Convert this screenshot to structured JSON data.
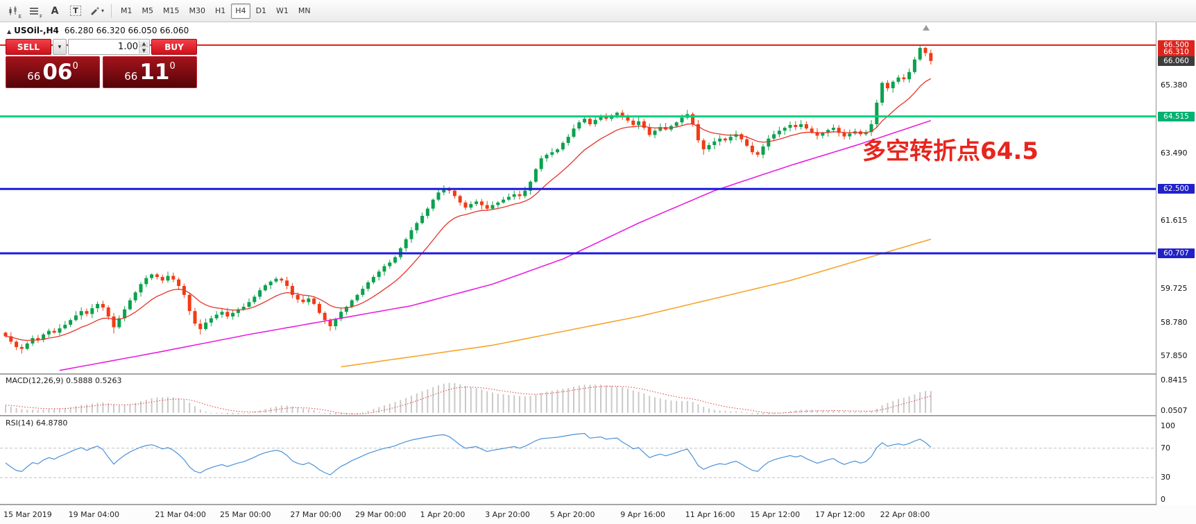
{
  "toolbar": {
    "tools": [
      {
        "name": "chart-window-icon",
        "glyph": "candles",
        "sub": "E"
      },
      {
        "name": "data-window-icon",
        "glyph": "list",
        "sub": "F"
      },
      {
        "name": "label-tool-icon",
        "glyph": "letter",
        "label": "A"
      },
      {
        "name": "text-tool-icon",
        "glyph": "boxed",
        "label": "T"
      },
      {
        "name": "draw-tool-icon",
        "glyph": "pen",
        "dropdown": true
      }
    ],
    "timeframes": [
      "M1",
      "M5",
      "M15",
      "M30",
      "H1",
      "H4",
      "D1",
      "W1",
      "MN"
    ],
    "active_timeframe": "H4"
  },
  "symbol_header": {
    "marker": "▲",
    "symbol": "USOil-,H4",
    "ohlc": "66.280 66.320 66.050 66.060"
  },
  "trade_panel": {
    "sell_label": "SELL",
    "buy_label": "BUY",
    "volume": "1.00",
    "bid": {
      "whole": "66",
      "pips": "06",
      "frac": "0"
    },
    "ask": {
      "whole": "66",
      "pips": "11",
      "frac": "0"
    }
  },
  "chart_data": {
    "type": "candlestick",
    "symbol": "USOil-",
    "timeframe": "H4",
    "current_ohlc": {
      "open": 66.28,
      "high": 66.32,
      "low": 66.05,
      "close": 66.06
    },
    "ylim": [
      57.6,
      66.75
    ],
    "style": {
      "up_color": "#0da14e",
      "down_color": "#f23b14",
      "macd_hist": "#c9c9c9",
      "macd_signal": "#e03636",
      "rsi_line": "#4a90d9"
    },
    "candles": {
      "first_open": 58.5,
      "closes": [
        58.4,
        58.25,
        58.1,
        58.05,
        58.2,
        58.35,
        58.3,
        58.45,
        58.55,
        58.5,
        58.62,
        58.72,
        58.85,
        58.98,
        59.1,
        59.02,
        59.18,
        59.3,
        59.2,
        58.95,
        58.65,
        58.9,
        59.15,
        59.4,
        59.62,
        59.85,
        60.02,
        60.12,
        60.05,
        59.95,
        60.08,
        59.98,
        59.8,
        59.55,
        59.1,
        58.75,
        58.6,
        58.78,
        58.9,
        59.0,
        59.08,
        58.95,
        59.05,
        59.15,
        59.22,
        59.35,
        59.5,
        59.68,
        59.82,
        59.92,
        60.0,
        59.95,
        59.8,
        59.55,
        59.42,
        59.35,
        59.45,
        59.3,
        59.05,
        58.85,
        58.68,
        58.88,
        59.08,
        59.22,
        59.4,
        59.55,
        59.72,
        59.9,
        60.05,
        60.2,
        60.35,
        60.45,
        60.6,
        60.85,
        61.1,
        61.35,
        61.55,
        61.75,
        61.95,
        62.2,
        62.4,
        62.52,
        62.45,
        62.3,
        62.12,
        61.98,
        62.08,
        62.15,
        62.05,
        61.95,
        62.05,
        62.12,
        62.2,
        62.28,
        62.35,
        62.3,
        62.45,
        62.7,
        63.05,
        63.35,
        63.45,
        63.52,
        63.6,
        63.78,
        63.95,
        64.18,
        64.35,
        64.45,
        64.3,
        64.42,
        64.52,
        64.45,
        64.55,
        64.62,
        64.5,
        64.4,
        64.28,
        64.38,
        64.2,
        64.0,
        64.12,
        64.22,
        64.15,
        64.25,
        64.35,
        64.48,
        64.58,
        64.3,
        63.85,
        63.6,
        63.72,
        63.82,
        63.9,
        63.85,
        63.95,
        64.02,
        63.88,
        63.7,
        63.52,
        63.45,
        63.68,
        63.9,
        64.02,
        64.12,
        64.2,
        64.28,
        64.22,
        64.3,
        64.18,
        64.08,
        63.98,
        64.06,
        64.14,
        64.2,
        64.06,
        63.96,
        64.04,
        64.1,
        64.02,
        64.08,
        64.3,
        64.9,
        65.45,
        65.3,
        65.48,
        65.6,
        65.55,
        65.75,
        66.1,
        66.42,
        66.28,
        66.06
      ],
      "high_overrides": {
        "81": 62.6,
        "126": 64.7,
        "169": 66.49
      },
      "low_overrides": {
        "3": 57.92,
        "20": 58.48,
        "36": 58.45,
        "60": 58.55,
        "129": 63.45,
        "139": 63.38
      }
    },
    "moving_averages": [
      {
        "name": "fast-ma",
        "type": "ema",
        "period": 13,
        "color": "#e5342a"
      },
      {
        "name": "mid-ma",
        "type": "anchors",
        "color": "#e81ee0",
        "anchors": [
          [
            10,
            57.45
          ],
          [
            28,
            57.95
          ],
          [
            45,
            58.45
          ],
          [
            60,
            58.85
          ],
          [
            75,
            59.25
          ],
          [
            90,
            59.85
          ],
          [
            103,
            60.55
          ],
          [
            117,
            61.55
          ],
          [
            131,
            62.45
          ],
          [
            145,
            63.15
          ],
          [
            158,
            63.75
          ],
          [
            171,
            64.4
          ]
        ]
      },
      {
        "name": "slow-ma",
        "type": "anchors",
        "color": "#f6a52b",
        "anchors": [
          [
            62,
            57.55
          ],
          [
            90,
            58.15
          ],
          [
            117,
            58.95
          ],
          [
            145,
            59.95
          ],
          [
            171,
            61.1
          ]
        ]
      }
    ],
    "hlines": [
      {
        "price": 66.5,
        "color": "#dc241c",
        "width": 2,
        "label": "66.500"
      },
      {
        "price": 64.515,
        "color": "#00cf7f",
        "width": 3,
        "label": "64.515"
      },
      {
        "price": 62.5,
        "color": "#1b1bdf",
        "width": 3,
        "label": "62.500"
      },
      {
        "price": 60.707,
        "color": "#1b1bdf",
        "width": 3,
        "label": "60.707"
      }
    ],
    "price_labels": [
      {
        "text": "66.500",
        "price": 66.5,
        "bg": "#dc241c"
      },
      {
        "text": "66.310",
        "price": 66.31,
        "bg": "#dc241c"
      },
      {
        "text": "66.060",
        "price": 66.06,
        "bg": "#3d3d3d"
      },
      {
        "text": "64.515",
        "price": 64.515,
        "bg": "#00b172"
      },
      {
        "text": "62.500",
        "price": 62.5,
        "bg": "#2121c8"
      },
      {
        "text": "60.707",
        "price": 60.707,
        "bg": "#2121c8"
      }
    ],
    "axis_ticks": [
      {
        "text": "65.380",
        "price": 65.38
      },
      {
        "text": "63.490",
        "price": 63.49
      },
      {
        "text": "61.615",
        "price": 61.615
      },
      {
        "text": "59.725",
        "price": 59.725
      },
      {
        "text": "58.780",
        "price": 58.78
      },
      {
        "text": "57.850",
        "price": 57.85
      }
    ],
    "annotation": {
      "text": "多空转折点64.5",
      "color": "#e8251d"
    },
    "macd": {
      "title_text": "MACD(12,26,9) 0.5888 0.5263",
      "fast": 12,
      "slow": 26,
      "signal": 9,
      "value": 0.5888,
      "signal_value": 0.5263,
      "axis_labels": [
        {
          "text": "0.8415",
          "value": 0.8415
        },
        {
          "text": "0.0507",
          "value": 0.0507
        }
      ]
    },
    "rsi": {
      "title_text": "RSI(14) 64.8780",
      "period": 14,
      "value": 64.878,
      "levels": [
        {
          "text": "100",
          "value": 100
        },
        {
          "text": "70",
          "value": 70
        },
        {
          "text": "30",
          "value": 30
        },
        {
          "text": "0",
          "value": 0
        }
      ],
      "dashed_levels": [
        70,
        30
      ]
    },
    "time_axis": [
      {
        "label": "15 Mar 2019",
        "i": 0
      },
      {
        "label": "19 Mar 04:00",
        "i": 12
      },
      {
        "label": "21 Mar 04:00",
        "i": 28
      },
      {
        "label": "25 Mar 00:00",
        "i": 40
      },
      {
        "label": "27 Mar 00:00",
        "i": 53
      },
      {
        "label": "29 Mar 00:00",
        "i": 65
      },
      {
        "label": "1 Apr 20:00",
        "i": 77
      },
      {
        "label": "3 Apr 20:00",
        "i": 89
      },
      {
        "label": "5 Apr 20:00",
        "i": 101
      },
      {
        "label": "9 Apr 16:00",
        "i": 114
      },
      {
        "label": "11 Apr 16:00",
        "i": 126
      },
      {
        "label": "15 Apr 12:00",
        "i": 138
      },
      {
        "label": "17 Apr 12:00",
        "i": 150
      },
      {
        "label": "22 Apr 08:00",
        "i": 162
      }
    ]
  }
}
